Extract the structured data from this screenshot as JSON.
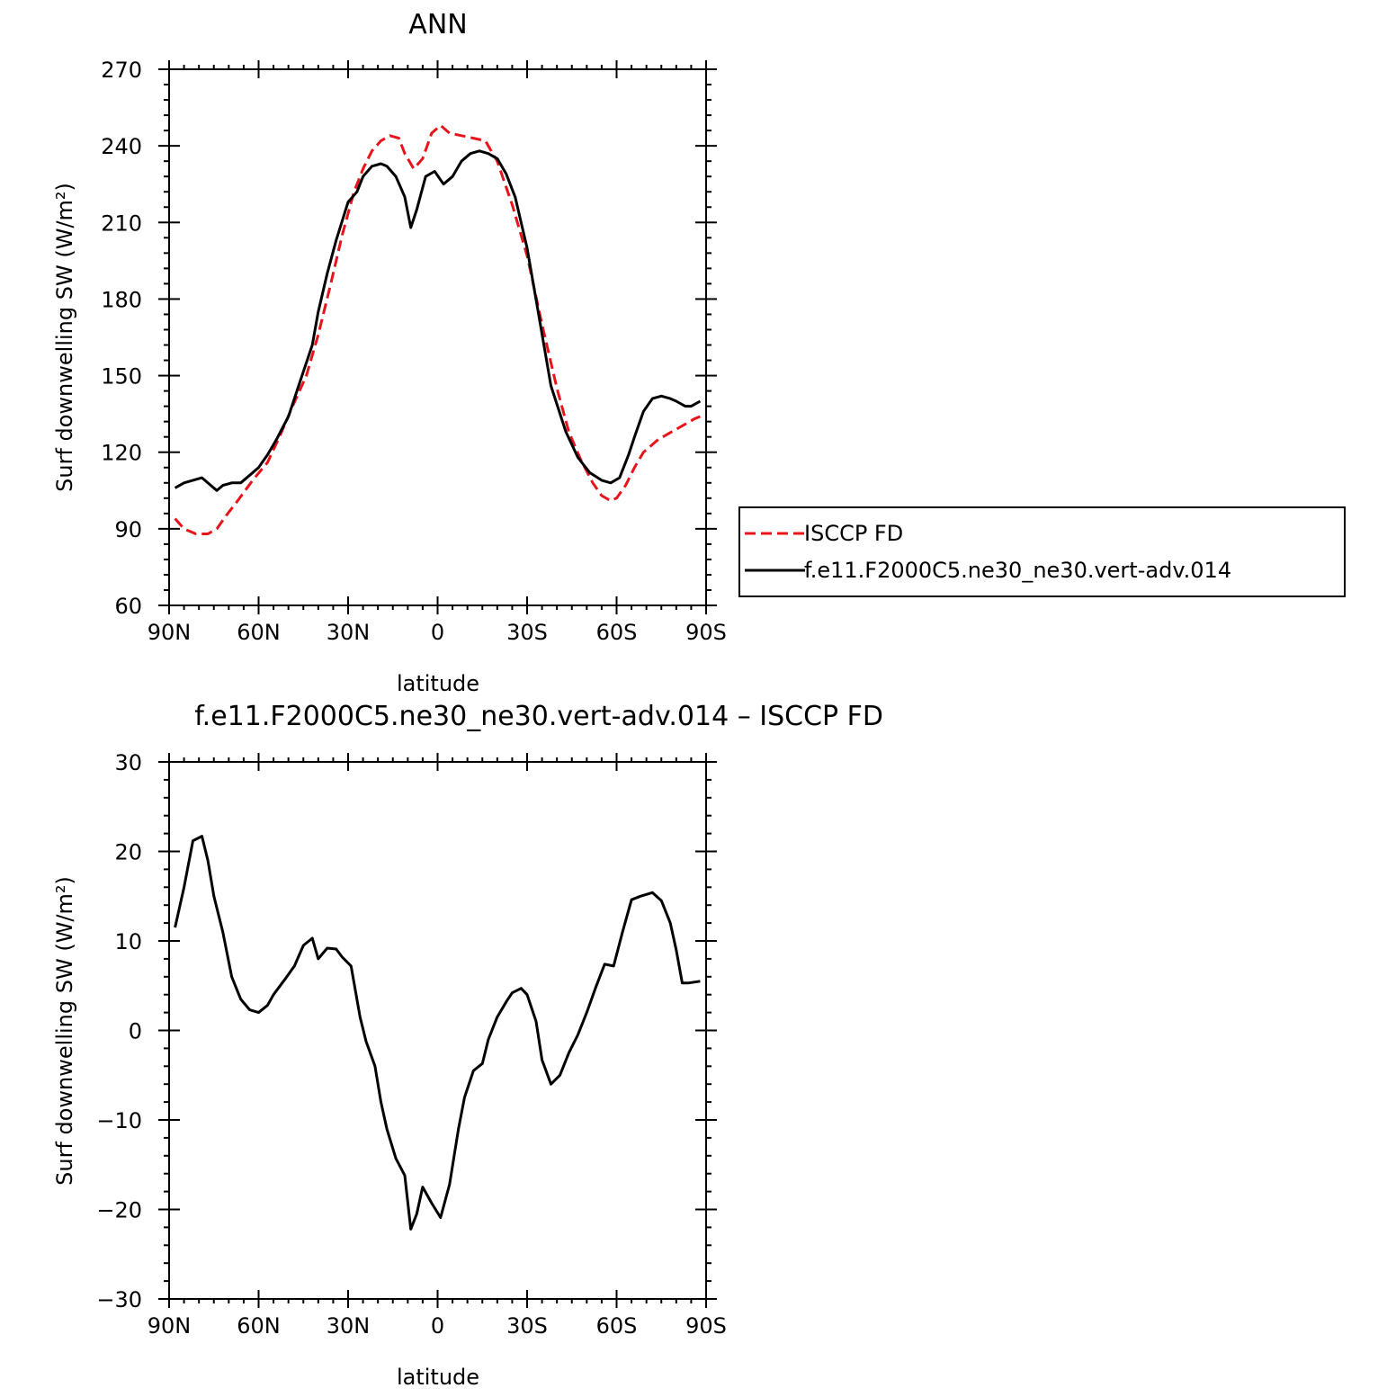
{
  "colors": {
    "isccp": "#e8141c",
    "model": "#000000",
    "axes": "#000000"
  },
  "chart_data": [
    {
      "type": "line",
      "title": "ANN",
      "xlabel": "latitude",
      "ylabel": "Surf downwelling SW (W/m²)",
      "xlim": [
        -90,
        90
      ],
      "ylim": [
        60,
        270
      ],
      "x_ticks": [
        {
          "value": -90,
          "label": "90N"
        },
        {
          "value": -60,
          "label": "60N"
        },
        {
          "value": -30,
          "label": "30N"
        },
        {
          "value": 0,
          "label": "0"
        },
        {
          "value": 30,
          "label": "30S"
        },
        {
          "value": 60,
          "label": "60S"
        },
        {
          "value": 90,
          "label": "90S"
        }
      ],
      "y_ticks": [
        60,
        90,
        120,
        150,
        180,
        210,
        240,
        270
      ],
      "legend": {
        "placement": "right",
        "entries": [
          "ISCCP FD",
          "f.e11.F2000C5.ne30_ne30.vert-adv.014"
        ]
      },
      "series": [
        {
          "name": "ISCCP FD",
          "style": "dashed",
          "x": [
            -88,
            -85,
            -81,
            -77,
            -74,
            -71,
            -67,
            -62,
            -57,
            -53,
            -49,
            -44,
            -40,
            -36,
            -32,
            -28,
            -25,
            -22,
            -19,
            -16,
            -13,
            -11,
            -8,
            -5,
            -2,
            1,
            4,
            8,
            12,
            16,
            20,
            25,
            30,
            35,
            40,
            44,
            48,
            52,
            55,
            58,
            60,
            63,
            66,
            69,
            71,
            74,
            77,
            80,
            83,
            86,
            88
          ],
          "values": [
            94,
            90,
            88,
            88,
            90,
            95,
            101,
            109,
            116,
            126,
            137,
            150,
            166,
            185,
            205,
            222,
            231,
            238,
            242,
            244,
            243,
            237,
            231,
            235,
            245,
            248,
            245,
            244,
            243,
            242,
            234,
            217,
            197,
            170,
            145,
            128,
            117,
            108,
            103,
            101,
            102,
            107,
            114,
            120,
            122,
            125,
            127,
            129,
            131,
            133,
            134
          ]
        },
        {
          "name": "f.e11.F2000C5.ne30_ne30.vert-adv.014",
          "style": "solid",
          "x": [
            -88,
            -85,
            -82,
            -79,
            -76,
            -74,
            -72,
            -69,
            -66,
            -63,
            -60,
            -57,
            -54,
            -50,
            -46,
            -42,
            -40,
            -37,
            -34,
            -30,
            -27,
            -25,
            -22,
            -19,
            -17,
            -14,
            -11,
            -9,
            -7,
            -4,
            -1,
            2,
            5,
            8,
            11,
            14,
            17,
            20,
            23,
            26,
            30,
            34,
            38,
            43,
            47,
            51,
            55,
            58,
            61,
            64,
            66,
            69,
            72,
            75,
            78,
            80,
            83,
            85,
            88
          ],
          "values": [
            106,
            108,
            109,
            110,
            107,
            105,
            107,
            108,
            108,
            111,
            114,
            119,
            125,
            134,
            148,
            162,
            175,
            190,
            203,
            218,
            222,
            228,
            232,
            233,
            232,
            228,
            220,
            208,
            215,
            228,
            230,
            225,
            228,
            234,
            237,
            238,
            237,
            235,
            229,
            220,
            200,
            173,
            146,
            128,
            118,
            112,
            109,
            108,
            110,
            119,
            126,
            136,
            141,
            142,
            141,
            140,
            138,
            138,
            140
          ]
        }
      ]
    },
    {
      "type": "line",
      "title": "f.e11.F2000C5.ne30_ne30.vert-adv.014 – ISCCP FD",
      "xlabel": "latitude",
      "ylabel": "Surf downwelling SW (W/m²)",
      "xlim": [
        -90,
        90
      ],
      "ylim": [
        -30,
        30
      ],
      "x_ticks": [
        {
          "value": -90,
          "label": "90N"
        },
        {
          "value": -60,
          "label": "60N"
        },
        {
          "value": -30,
          "label": "30N"
        },
        {
          "value": 0,
          "label": "0"
        },
        {
          "value": 30,
          "label": "30S"
        },
        {
          "value": 60,
          "label": "60S"
        },
        {
          "value": 90,
          "label": "90S"
        }
      ],
      "y_ticks": [
        -30,
        -20,
        -10,
        0,
        10,
        20,
        30
      ],
      "series": [
        {
          "style": "solid",
          "x": [
            -88,
            -85,
            -82,
            -79,
            -77,
            -75,
            -72,
            -69,
            -66,
            -63,
            -60,
            -57,
            -55,
            -51,
            -48,
            -45,
            -42,
            -40,
            -37,
            -34,
            -32,
            -29,
            -26,
            -24,
            -21,
            -19,
            -17,
            -14,
            -11,
            -9,
            -7,
            -5,
            -2,
            1,
            4,
            7,
            9,
            12,
            15,
            17,
            20,
            23,
            25,
            28,
            30,
            33,
            35,
            38,
            41,
            44,
            47,
            50,
            53,
            56,
            59,
            62,
            65,
            68,
            72,
            75,
            78,
            80,
            82,
            84,
            86,
            88
          ],
          "values": [
            11.5,
            16,
            21.2,
            21.7,
            19,
            15,
            11,
            6,
            3.5,
            2.3,
            2,
            2.8,
            4,
            5.8,
            7.2,
            9.5,
            10.3,
            8,
            9.2,
            9.1,
            8.2,
            7.2,
            1.5,
            -1.2,
            -4,
            -8,
            -11,
            -14.3,
            -16.2,
            -22.2,
            -20.5,
            -17.5,
            -19.3,
            -20.9,
            -17.2,
            -11,
            -7.5,
            -4.5,
            -3.7,
            -1,
            1.5,
            3.2,
            4.2,
            4.7,
            4,
            1,
            -3.3,
            -6,
            -5,
            -2.5,
            -0.5,
            2,
            4.8,
            7.4,
            7.2,
            11,
            14.6,
            15,
            15.4,
            14.5,
            12,
            9,
            5.3,
            5.3,
            5.4,
            5.5
          ]
        }
      ]
    }
  ]
}
